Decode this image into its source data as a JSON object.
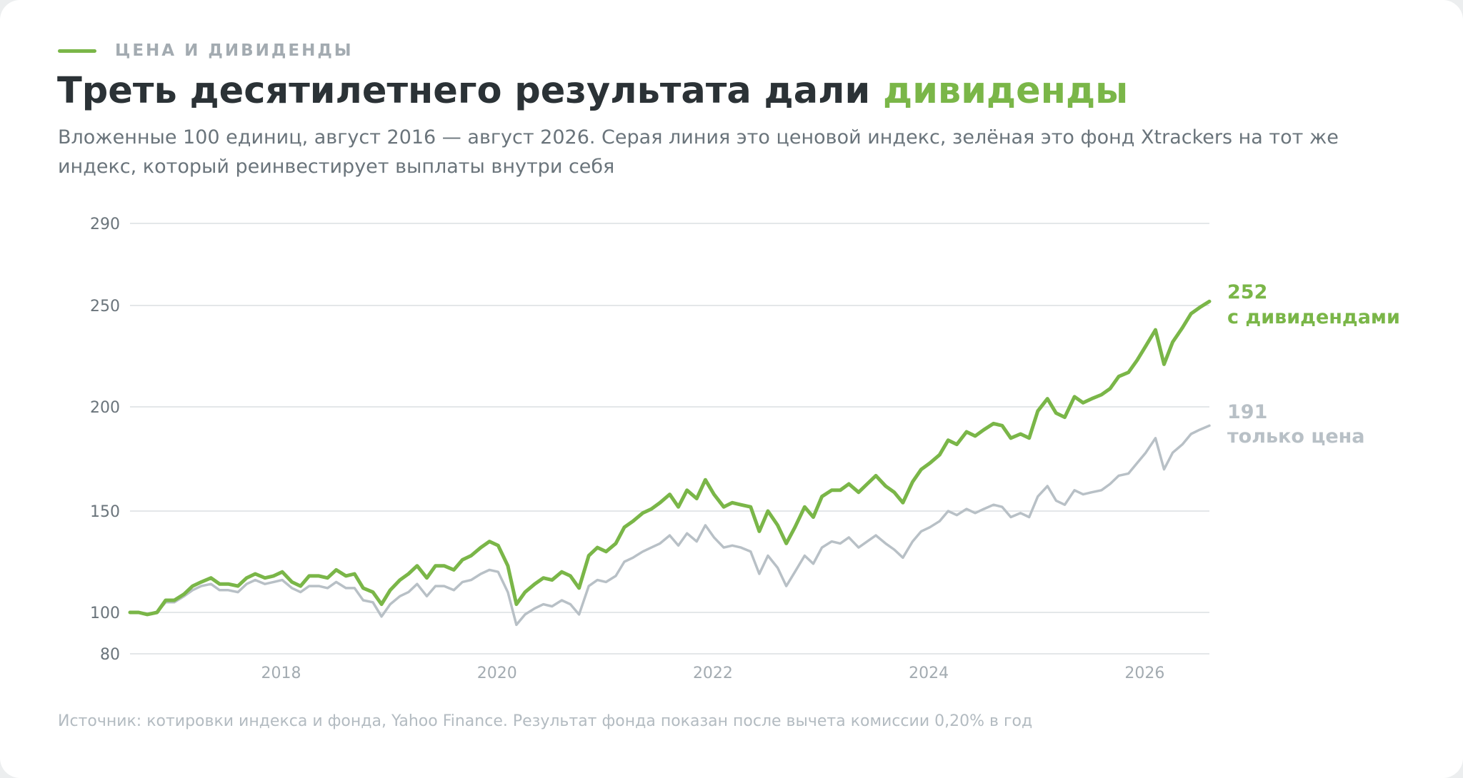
{
  "header": {
    "kicker": "ЦЕНА И ДИВИДЕНДЫ",
    "title_main": "Треть десятилетнего результата дали ",
    "title_accent": "дивиденды",
    "subtitle": "Вложенные 100 единиц, август 2016 — август 2026. Серая линия это ценовой индекс, зелёная это фонд Xtrackers на тот же индекс, который реинвестирует выплаты внутри себя"
  },
  "footnote": "Источник: котировки индекса и фонда, Yahoo Finance. Результат фонда показан после вычета комиссии 0,20% в год",
  "colors": {
    "accent": "#7ab648",
    "price": "#b8c0c6",
    "grid": "#e4e7e9",
    "axis_text": "#6a747b",
    "muted": "#a3abb1"
  },
  "chart_data": {
    "type": "line",
    "x_label": "",
    "y_label": "",
    "x_range": [
      2016.6,
      2026.6
    ],
    "ylim": [
      80,
      290
    ],
    "y_ticks": [
      80,
      100,
      150,
      200,
      250,
      290
    ],
    "x_ticks": [
      {
        "value": 2018,
        "label": "2018"
      },
      {
        "value": 2020,
        "label": "2020"
      },
      {
        "value": 2022,
        "label": "2022"
      },
      {
        "value": 2024,
        "label": "2024"
      },
      {
        "value": 2026,
        "label": "2026"
      }
    ],
    "grid": true,
    "series": [
      {
        "key": "total",
        "end_value": "252",
        "end_label": "с дивидендами",
        "color": "#7ab648",
        "points": [
          [
            2016.6,
            100
          ],
          [
            2016.68,
            100
          ],
          [
            2016.76,
            99
          ],
          [
            2016.85,
            100
          ],
          [
            2016.93,
            106
          ],
          [
            2017.01,
            106
          ],
          [
            2017.1,
            109
          ],
          [
            2017.18,
            113
          ],
          [
            2017.26,
            115
          ],
          [
            2017.35,
            117
          ],
          [
            2017.43,
            114
          ],
          [
            2017.51,
            114
          ],
          [
            2017.6,
            113
          ],
          [
            2017.68,
            117
          ],
          [
            2017.76,
            119
          ],
          [
            2017.85,
            117
          ],
          [
            2017.93,
            118
          ],
          [
            2018.01,
            120
          ],
          [
            2018.1,
            115
          ],
          [
            2018.18,
            113
          ],
          [
            2018.26,
            118
          ],
          [
            2018.35,
            118
          ],
          [
            2018.43,
            117
          ],
          [
            2018.51,
            121
          ],
          [
            2018.6,
            118
          ],
          [
            2018.68,
            119
          ],
          [
            2018.76,
            112
          ],
          [
            2018.85,
            110
          ],
          [
            2018.93,
            104
          ],
          [
            2019.01,
            111
          ],
          [
            2019.1,
            116
          ],
          [
            2019.18,
            119
          ],
          [
            2019.26,
            123
          ],
          [
            2019.35,
            117
          ],
          [
            2019.43,
            123
          ],
          [
            2019.51,
            123
          ],
          [
            2019.6,
            121
          ],
          [
            2019.68,
            126
          ],
          [
            2019.76,
            128
          ],
          [
            2019.85,
            132
          ],
          [
            2019.93,
            135
          ],
          [
            2020.01,
            133
          ],
          [
            2020.1,
            123
          ],
          [
            2020.18,
            104
          ],
          [
            2020.26,
            110
          ],
          [
            2020.35,
            114
          ],
          [
            2020.43,
            117
          ],
          [
            2020.51,
            116
          ],
          [
            2020.6,
            120
          ],
          [
            2020.68,
            118
          ],
          [
            2020.76,
            112
          ],
          [
            2020.85,
            128
          ],
          [
            2020.93,
            132
          ],
          [
            2021.01,
            130
          ],
          [
            2021.1,
            134
          ],
          [
            2021.18,
            142
          ],
          [
            2021.26,
            145
          ],
          [
            2021.35,
            149
          ],
          [
            2021.43,
            151
          ],
          [
            2021.51,
            154
          ],
          [
            2021.6,
            158
          ],
          [
            2021.68,
            152
          ],
          [
            2021.76,
            160
          ],
          [
            2021.85,
            156
          ],
          [
            2021.93,
            165
          ],
          [
            2022.01,
            158
          ],
          [
            2022.1,
            152
          ],
          [
            2022.18,
            154
          ],
          [
            2022.26,
            153
          ],
          [
            2022.35,
            152
          ],
          [
            2022.43,
            140
          ],
          [
            2022.51,
            150
          ],
          [
            2022.6,
            143
          ],
          [
            2022.68,
            134
          ],
          [
            2022.76,
            142
          ],
          [
            2022.85,
            152
          ],
          [
            2022.93,
            147
          ],
          [
            2023.01,
            157
          ],
          [
            2023.1,
            160
          ],
          [
            2023.18,
            160
          ],
          [
            2023.26,
            163
          ],
          [
            2023.35,
            159
          ],
          [
            2023.43,
            163
          ],
          [
            2023.51,
            167
          ],
          [
            2023.6,
            162
          ],
          [
            2023.68,
            159
          ],
          [
            2023.76,
            154
          ],
          [
            2023.85,
            164
          ],
          [
            2023.93,
            170
          ],
          [
            2024.01,
            173
          ],
          [
            2024.1,
            177
          ],
          [
            2024.18,
            184
          ],
          [
            2024.26,
            182
          ],
          [
            2024.35,
            188
          ],
          [
            2024.43,
            186
          ],
          [
            2024.51,
            189
          ],
          [
            2024.6,
            192
          ],
          [
            2024.68,
            191
          ],
          [
            2024.76,
            185
          ],
          [
            2024.85,
            187
          ],
          [
            2024.93,
            185
          ],
          [
            2025.01,
            198
          ],
          [
            2025.1,
            204
          ],
          [
            2025.18,
            197
          ],
          [
            2025.26,
            195
          ],
          [
            2025.35,
            205
          ],
          [
            2025.43,
            202
          ],
          [
            2025.51,
            204
          ],
          [
            2025.6,
            206
          ],
          [
            2025.68,
            209
          ],
          [
            2025.76,
            215
          ],
          [
            2025.85,
            217
          ],
          [
            2025.93,
            223
          ],
          [
            2026.01,
            230
          ],
          [
            2026.1,
            238
          ],
          [
            2026.18,
            221
          ],
          [
            2026.26,
            232
          ],
          [
            2026.35,
            239
          ],
          [
            2026.43,
            246
          ],
          [
            2026.51,
            249
          ],
          [
            2026.6,
            252
          ]
        ]
      },
      {
        "key": "price",
        "end_value": "191",
        "end_label": "только цена",
        "color": "#b8c0c6",
        "points": [
          [
            2016.6,
            100
          ],
          [
            2016.68,
            100
          ],
          [
            2016.76,
            99
          ],
          [
            2016.85,
            100
          ],
          [
            2016.93,
            105
          ],
          [
            2017.01,
            105
          ],
          [
            2017.1,
            108
          ],
          [
            2017.18,
            111
          ],
          [
            2017.26,
            113
          ],
          [
            2017.35,
            114
          ],
          [
            2017.43,
            111
          ],
          [
            2017.51,
            111
          ],
          [
            2017.6,
            110
          ],
          [
            2017.68,
            114
          ],
          [
            2017.76,
            116
          ],
          [
            2017.85,
            114
          ],
          [
            2017.93,
            115
          ],
          [
            2018.01,
            116
          ],
          [
            2018.1,
            112
          ],
          [
            2018.18,
            110
          ],
          [
            2018.26,
            113
          ],
          [
            2018.35,
            113
          ],
          [
            2018.43,
            112
          ],
          [
            2018.51,
            115
          ],
          [
            2018.6,
            112
          ],
          [
            2018.68,
            112
          ],
          [
            2018.76,
            106
          ],
          [
            2018.85,
            105
          ],
          [
            2018.93,
            98
          ],
          [
            2019.01,
            104
          ],
          [
            2019.1,
            108
          ],
          [
            2019.18,
            110
          ],
          [
            2019.26,
            114
          ],
          [
            2019.35,
            108
          ],
          [
            2019.43,
            113
          ],
          [
            2019.51,
            113
          ],
          [
            2019.6,
            111
          ],
          [
            2019.68,
            115
          ],
          [
            2019.76,
            116
          ],
          [
            2019.85,
            119
          ],
          [
            2019.93,
            121
          ],
          [
            2020.01,
            120
          ],
          [
            2020.1,
            110
          ],
          [
            2020.18,
            94
          ],
          [
            2020.26,
            99
          ],
          [
            2020.35,
            102
          ],
          [
            2020.43,
            104
          ],
          [
            2020.51,
            103
          ],
          [
            2020.6,
            106
          ],
          [
            2020.68,
            104
          ],
          [
            2020.76,
            99
          ],
          [
            2020.85,
            113
          ],
          [
            2020.93,
            116
          ],
          [
            2021.01,
            115
          ],
          [
            2021.1,
            118
          ],
          [
            2021.18,
            125
          ],
          [
            2021.26,
            127
          ],
          [
            2021.35,
            130
          ],
          [
            2021.43,
            132
          ],
          [
            2021.51,
            134
          ],
          [
            2021.6,
            138
          ],
          [
            2021.68,
            133
          ],
          [
            2021.76,
            139
          ],
          [
            2021.85,
            135
          ],
          [
            2021.93,
            143
          ],
          [
            2022.01,
            137
          ],
          [
            2022.1,
            132
          ],
          [
            2022.18,
            133
          ],
          [
            2022.26,
            132
          ],
          [
            2022.35,
            130
          ],
          [
            2022.43,
            119
          ],
          [
            2022.51,
            128
          ],
          [
            2022.6,
            122
          ],
          [
            2022.68,
            113
          ],
          [
            2022.76,
            120
          ],
          [
            2022.85,
            128
          ],
          [
            2022.93,
            124
          ],
          [
            2023.01,
            132
          ],
          [
            2023.1,
            135
          ],
          [
            2023.18,
            134
          ],
          [
            2023.26,
            137
          ],
          [
            2023.35,
            132
          ],
          [
            2023.43,
            135
          ],
          [
            2023.51,
            138
          ],
          [
            2023.6,
            134
          ],
          [
            2023.68,
            131
          ],
          [
            2023.76,
            127
          ],
          [
            2023.85,
            135
          ],
          [
            2023.93,
            140
          ],
          [
            2024.01,
            142
          ],
          [
            2024.1,
            145
          ],
          [
            2024.18,
            150
          ],
          [
            2024.26,
            148
          ],
          [
            2024.35,
            151
          ],
          [
            2024.43,
            149
          ],
          [
            2024.51,
            151
          ],
          [
            2024.6,
            153
          ],
          [
            2024.68,
            152
          ],
          [
            2024.76,
            147
          ],
          [
            2024.85,
            149
          ],
          [
            2024.93,
            147
          ],
          [
            2025.01,
            157
          ],
          [
            2025.1,
            162
          ],
          [
            2025.18,
            155
          ],
          [
            2025.26,
            153
          ],
          [
            2025.35,
            160
          ],
          [
            2025.43,
            158
          ],
          [
            2025.51,
            159
          ],
          [
            2025.6,
            160
          ],
          [
            2025.68,
            163
          ],
          [
            2025.76,
            167
          ],
          [
            2025.85,
            168
          ],
          [
            2025.93,
            173
          ],
          [
            2026.01,
            178
          ],
          [
            2026.1,
            185
          ],
          [
            2026.18,
            170
          ],
          [
            2026.26,
            178
          ],
          [
            2026.35,
            182
          ],
          [
            2026.43,
            187
          ],
          [
            2026.51,
            189
          ],
          [
            2026.6,
            191
          ]
        ]
      }
    ]
  }
}
